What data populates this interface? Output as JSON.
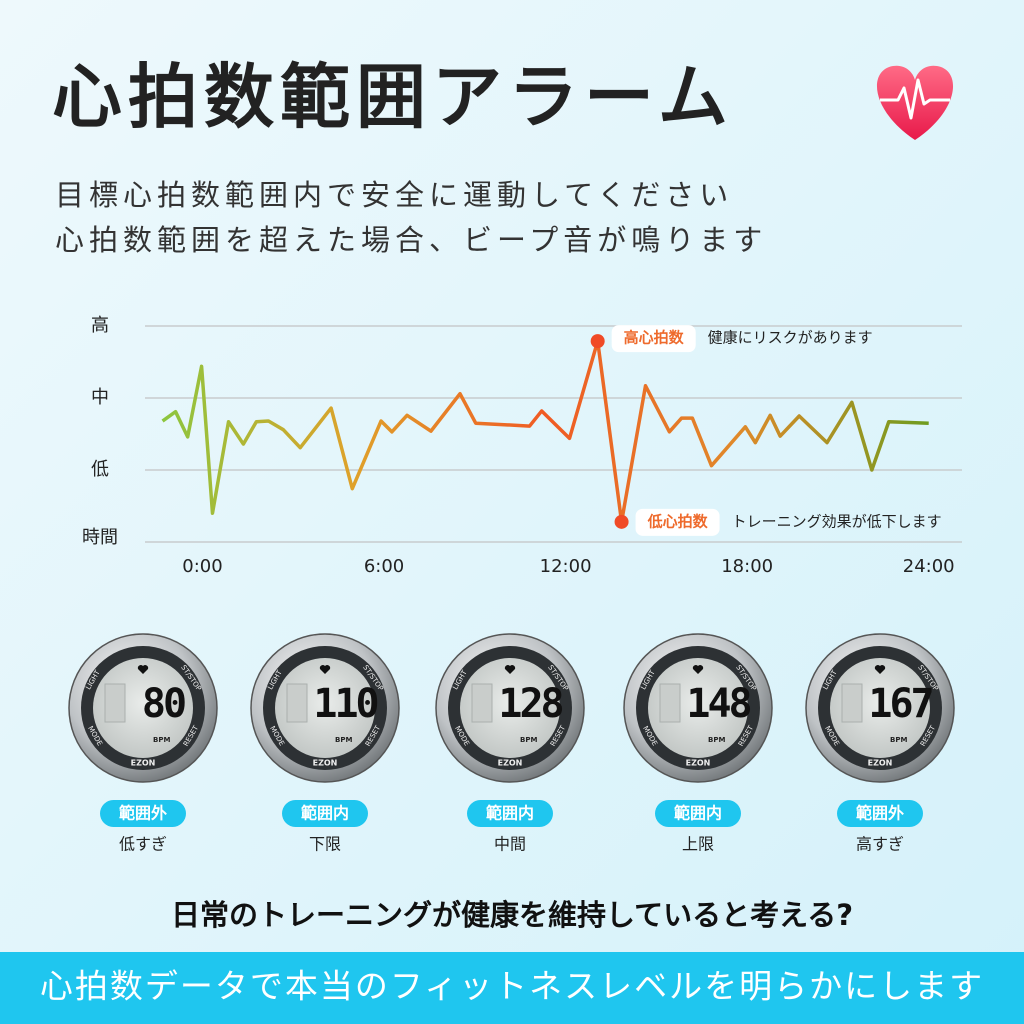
{
  "header": {
    "title": "心拍数範囲アラーム",
    "subtitle_lines": [
      "目標心拍数範囲内で安全に運動してください",
      "心拍数範囲を超えた場合、ビープ音が鳴ります"
    ]
  },
  "chart_data": {
    "type": "line",
    "x": [
      -1.32,
      -0.89,
      -0.49,
      -0.03,
      0.33,
      0.86,
      1.35,
      1.78,
      2.18,
      2.67,
      3.23,
      4.25,
      4.95,
      5.9,
      6.26,
      6.76,
      7.55,
      8.51,
      9.03,
      10.81,
      11.21,
      12.13,
      13.06,
      13.85,
      14.64,
      15.43,
      15.83,
      16.19,
      16.82,
      17.94,
      18.27,
      18.76,
      19.09,
      19.72,
      20.64,
      21.46,
      22.12,
      22.68,
      24.0
    ],
    "series": [
      {
        "values": [
          1.68,
          1.81,
          1.46,
          2.44,
          0.4,
          1.67,
          1.36,
          1.67,
          1.68,
          1.56,
          1.31,
          1.86,
          0.74,
          1.68,
          1.53,
          1.76,
          1.54,
          2.06,
          1.65,
          1.61,
          1.82,
          1.44,
          2.79,
          0.28,
          2.17,
          1.53,
          1.72,
          1.72,
          1.06,
          1.6,
          1.38,
          1.76,
          1.47,
          1.75,
          1.38,
          1.94,
          1.0,
          1.67,
          1.65
        ],
        "gradient": [
          "#8cc63f",
          "#dfa12a",
          "#f05a24",
          "#e0892a",
          "#6f9c1f"
        ]
      }
    ],
    "xlim": [
      -1.9,
      25.1
    ],
    "ylim": [
      0,
      3
    ],
    "xticks": [
      {
        "value": 0,
        "label": "0:00"
      },
      {
        "value": 6,
        "label": "6:00"
      },
      {
        "value": 12,
        "label": "12:00"
      },
      {
        "value": 18,
        "label": "18:00"
      },
      {
        "value": 24,
        "label": "24:00"
      }
    ],
    "yticks": [
      {
        "value": 3,
        "label": "高"
      },
      {
        "value": 2,
        "label": "中"
      },
      {
        "value": 1,
        "label": "低"
      },
      {
        "value": 0,
        "label": "時間"
      }
    ],
    "grid": true,
    "marker_color": "#f04a26",
    "annotations": [
      {
        "point": 22,
        "label": "高心拍数",
        "text": "健康にリスクがあります"
      },
      {
        "point": 23,
        "label": "低心拍数",
        "text": "トレーニング効果が低下します"
      }
    ]
  },
  "watch_face": {
    "light": "LIGHT",
    "start": "ST/STOP",
    "mode": "MODE",
    "reset": "RESET",
    "unit": "BPM",
    "brand": "EZON"
  },
  "watches": [
    {
      "value": "80",
      "status": "範囲外",
      "label": "低すぎ"
    },
    {
      "value": "110",
      "status": "範囲内",
      "label": "下限"
    },
    {
      "value": "128",
      "status": "範囲内",
      "label": "中間"
    },
    {
      "value": "148",
      "status": "範囲内",
      "label": "上限"
    },
    {
      "value": "167",
      "status": "範囲外",
      "label": "高すぎ"
    }
  ],
  "footer": {
    "question": "日常のトレーニングが健康を維持していると考える?",
    "banner": "心拍数データで本当のフィットネスレベルを明らかにします"
  }
}
